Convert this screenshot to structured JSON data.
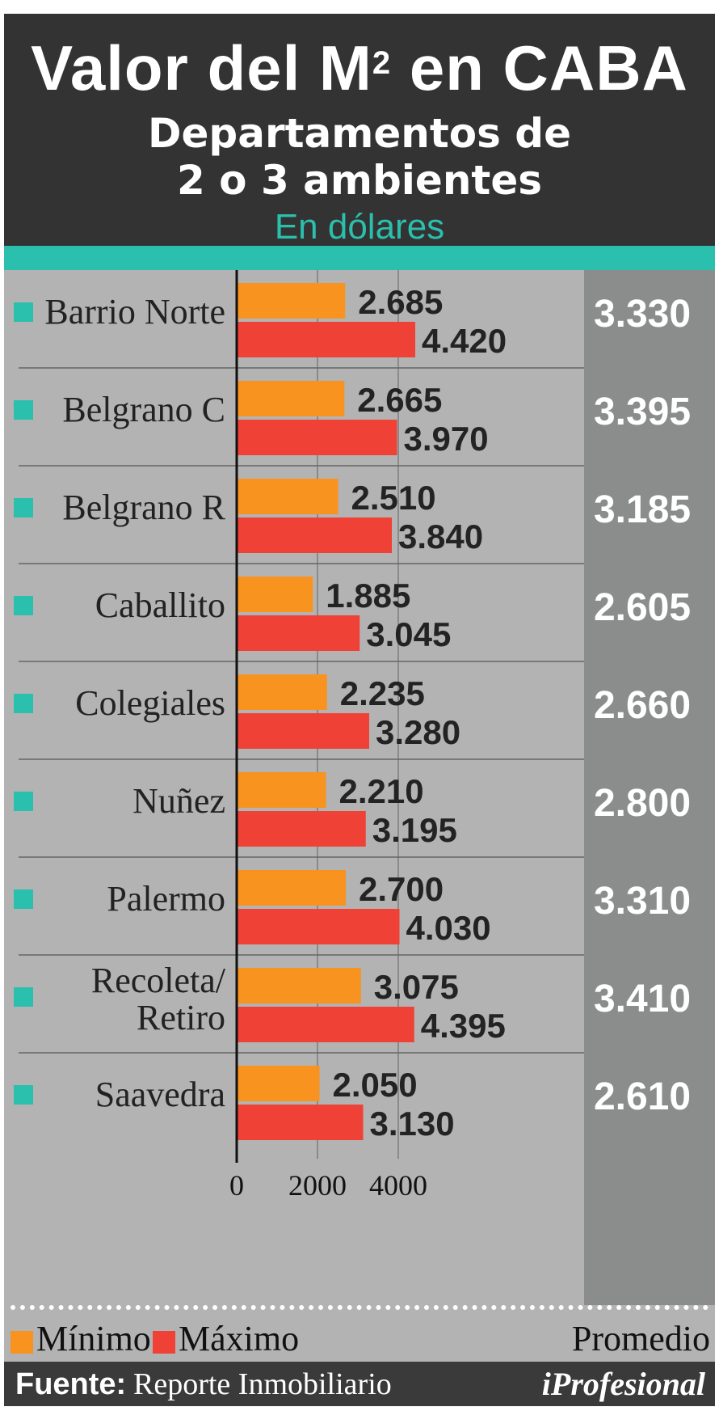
{
  "header": {
    "title": "Valor del M",
    "title_sup": "2",
    "title_rest": " en CABA",
    "subtitle_line1": "Departamentos de",
    "subtitle_line2": "2 o 3 ambientes",
    "unit": "En dólares"
  },
  "colors": {
    "teal": "#2bbfad",
    "minimo": "#f7931e",
    "maximo": "#ef4136",
    "header_bg": "#333333",
    "chart_bg": "#b3b3b3",
    "avg_bg": "#8b8c8c"
  },
  "chart_data": {
    "type": "bar",
    "orientation": "horizontal",
    "categories": [
      "Barrio Norte",
      "Belgrano C",
      "Belgrano R",
      "Caballito",
      "Colegiales",
      "Nuñez",
      "Palermo",
      "Recoleta/ Retiro",
      "Saavedra"
    ],
    "category_lines": [
      [
        "Barrio Norte"
      ],
      [
        "Belgrano C"
      ],
      [
        "Belgrano R"
      ],
      [
        "Caballito"
      ],
      [
        "Colegiales"
      ],
      [
        "Nuñez"
      ],
      [
        "Palermo"
      ],
      [
        "Recoleta/",
        "Retiro"
      ],
      [
        "Saavedra"
      ]
    ],
    "series": [
      {
        "name": "Mínimo",
        "color": "#f7931e",
        "values": [
          2685,
          2665,
          2510,
          1885,
          2235,
          2210,
          2700,
          3075,
          2050
        ],
        "labels": [
          "2.685",
          "2.665",
          "2.510",
          "1.885",
          "2.235",
          "2.210",
          "2.700",
          "3.075",
          "2.050"
        ]
      },
      {
        "name": "Máximo",
        "color": "#ef4136",
        "values": [
          4420,
          3970,
          3840,
          3045,
          3280,
          3195,
          4030,
          4395,
          3130
        ],
        "labels": [
          "4.420",
          "3.970",
          "3.840",
          "3.045",
          "3.280",
          "3.195",
          "4.030",
          "4.395",
          "3.130"
        ]
      }
    ],
    "average": {
      "name": "Promedio",
      "values": [
        3330,
        3395,
        3185,
        2605,
        2660,
        2800,
        3310,
        3410,
        2610
      ],
      "labels": [
        "3.330",
        "3.395",
        "3.185",
        "2.605",
        "2.660",
        "2.800",
        "3.310",
        "3.410",
        "2.610"
      ]
    },
    "x_ticks": [
      "0",
      "2000",
      "4000"
    ],
    "xlim": [
      0,
      4500
    ],
    "grid": true
  },
  "legend": {
    "minimo": "Mínimo",
    "maximo": "Máximo",
    "promedio": "Promedio"
  },
  "footer": {
    "source_label": "Fuente:",
    "source_value": "Reporte Inmobiliario",
    "logo": "iProfesional"
  }
}
